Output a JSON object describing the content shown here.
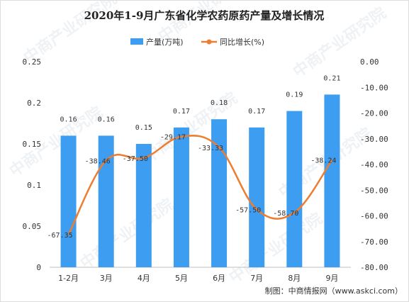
{
  "watermark_text": "中商产业研究院",
  "chart_data": {
    "type": "bar",
    "title": "2020年1-9月广东省化学农药原药产量及增长情况",
    "categories": [
      "1-2月",
      "3月",
      "4月",
      "5月",
      "6月",
      "7月",
      "8月",
      "9月"
    ],
    "series": [
      {
        "name": "产量(万吨)",
        "type": "bar",
        "axis": "left",
        "color": "#3d9df0",
        "values": [
          0.16,
          0.16,
          0.15,
          0.17,
          0.18,
          0.17,
          0.19,
          0.21
        ],
        "labels": [
          "0.16",
          "0.16",
          "0.15",
          "0.17",
          "0.18",
          "0.17",
          "0.19",
          "0.21"
        ]
      },
      {
        "name": "同比增长(%)",
        "type": "line",
        "axis": "right",
        "color": "#ed7d31",
        "values": [
          -67.35,
          -38.46,
          -37.5,
          -29.17,
          -33.33,
          -57.5,
          -58.7,
          -38.24
        ],
        "labels": [
          "-67.35",
          "-38.46",
          "-37.50",
          "-29.17",
          "-33.33",
          "-57.50",
          "-58.70",
          "-38.24"
        ]
      }
    ],
    "left_axis": {
      "min": 0,
      "max": 0.25,
      "ticks": [
        "0",
        "0.05",
        "0.1",
        "0.15",
        "0.2",
        "0.25"
      ]
    },
    "right_axis": {
      "min": -80,
      "max": 0,
      "ticks": [
        "-80.00",
        "-70.00",
        "-60.00",
        "-50.00",
        "-40.00",
        "-30.00",
        "-20.00",
        "-10.00",
        "0.00"
      ]
    },
    "legend_position": "top-center",
    "grid": false,
    "source": "制图：中商情报网（www.askci.com）"
  }
}
